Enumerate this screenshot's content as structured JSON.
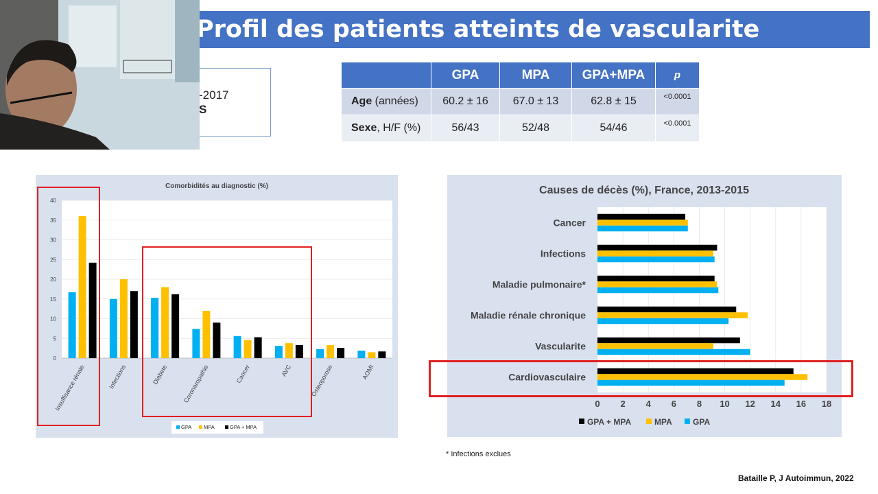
{
  "title": "Profil des patients atteints de vascularite",
  "partial_box": {
    "year_text": "-2017",
    "letter_text": "S"
  },
  "table": {
    "headers": [
      "",
      "GPA",
      "MPA",
      "GPA+MPA",
      "p"
    ],
    "rows": [
      {
        "label_bold": "Age",
        "label_rest": " (années)",
        "cells": [
          "60.2 ± 16",
          "67.0 ± 13",
          "62.8 ± 15"
        ],
        "p": "<0.0001"
      },
      {
        "label_bold": "Sexe",
        "label_rest": ", H/F (%)",
        "cells": [
          "56/43",
          "52/48",
          "54/46"
        ],
        "p": "<0.0001"
      }
    ]
  },
  "colors": {
    "GPA": "#00b0f0",
    "MPA": "#ffc000",
    "GPA+MPA": "#000000",
    "banner": "#4472c4",
    "highlight": "#e02020"
  },
  "chart_data": [
    {
      "type": "bar",
      "title": "Comorbidités au diagnostic (%)",
      "categories": [
        "Insuffisance rénale",
        "Infections",
        "Diabete",
        "Coronaropathie",
        "Cancer",
        "AVC",
        "Osteoporose",
        "AOMI"
      ],
      "series": [
        {
          "name": "GPA",
          "values": [
            16.7,
            15,
            15.3,
            7.4,
            5.6,
            3.1,
            2.3,
            1.9
          ]
        },
        {
          "name": "MPA",
          "values": [
            36,
            20,
            18,
            12,
            4.6,
            3.8,
            3.3,
            1.5
          ]
        },
        {
          "name": "GPA + MPA",
          "values": [
            24.2,
            17,
            16.2,
            9,
            5.3,
            3.3,
            2.6,
            1.7
          ]
        }
      ],
      "ylim": [
        0,
        40
      ],
      "yticks": [
        "0",
        "5",
        "10",
        "15",
        "20",
        "25",
        "30",
        "35",
        "40"
      ],
      "legend": "bottom"
    },
    {
      "type": "bar",
      "orientation": "horizontal",
      "title": "Causes de décès (%), France, 2013-2015",
      "categories": [
        "Cancer",
        "Infections",
        "Maladie pulmonaire*",
        "Maladie rénale chronique",
        "Vascularite",
        "Cardiovasculaire"
      ],
      "series": [
        {
          "name": "GPA + MPA",
          "values": [
            6.9,
            9.4,
            9.2,
            10.9,
            11.2,
            15.4
          ]
        },
        {
          "name": "MPA",
          "values": [
            7.1,
            9.1,
            9.4,
            11.8,
            9.1,
            16.5
          ]
        },
        {
          "name": "GPA",
          "values": [
            7.1,
            9.2,
            9.5,
            10.3,
            12,
            14.7
          ]
        }
      ],
      "xlim": [
        0,
        18
      ],
      "xticks": [
        "0",
        "2",
        "4",
        "6",
        "8",
        "10",
        "12",
        "14",
        "16",
        "18"
      ],
      "legend": "bottom"
    }
  ],
  "footnote": "* Infections exclues",
  "citation": "Bataille P, J Autoimmun, 2022"
}
